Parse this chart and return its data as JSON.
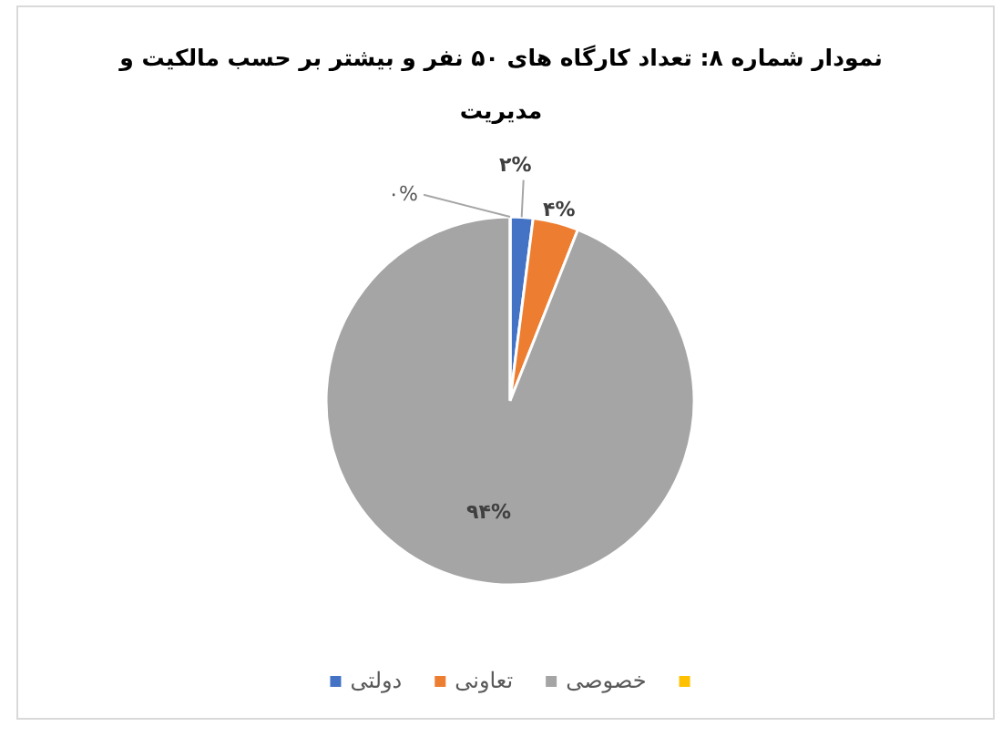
{
  "chart_data": {
    "type": "pie",
    "title": "نمودار شماره ۸: تعداد کارگاه های ۵۰ نفر و بیشتر بر حسب مالکیت و مدیریت",
    "categories": [
      "دولتی",
      "تعاونی",
      "خصوصی",
      null
    ],
    "values": [
      2,
      4,
      94,
      0
    ],
    "colors": [
      "#4472c4",
      "#ed7d31",
      "#a5a5a5",
      "#ffc000"
    ],
    "value_labels": [
      "۲%",
      "۴%",
      "۹۴%",
      "۰%"
    ],
    "legend": "bottom"
  }
}
